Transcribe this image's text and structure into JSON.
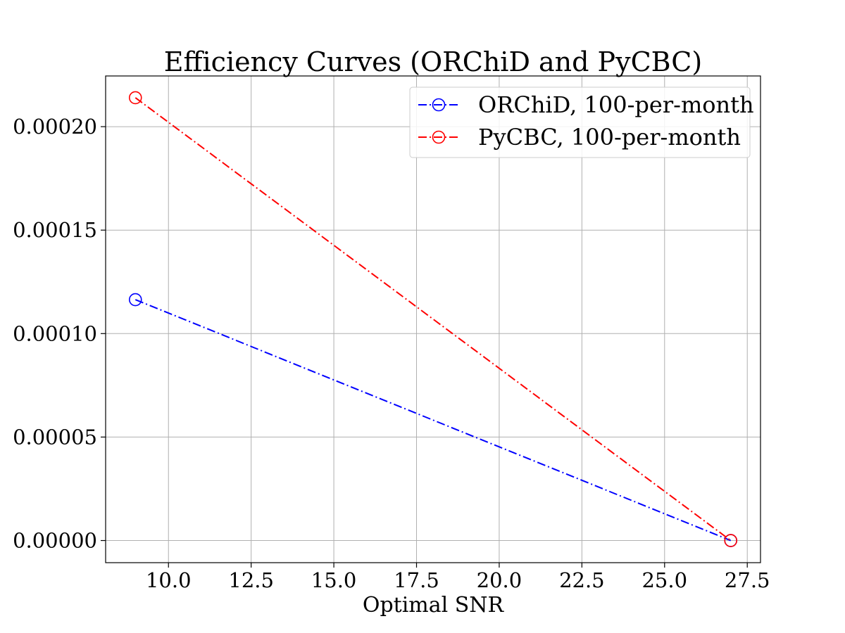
{
  "chart_data": {
    "type": "line",
    "title": "Efficiency Curves (ORChiD and PyCBC)",
    "xlabel": "Optimal SNR",
    "ylabel": "",
    "xlim": [
      8.1,
      27.9
    ],
    "ylim": [
      -1.07e-05,
      0.0002245
    ],
    "x_ticks": [
      10.0,
      12.5,
      15.0,
      17.5,
      20.0,
      22.5,
      25.0,
      27.5
    ],
    "x_tick_labels": [
      "10.0",
      "12.5",
      "15.0",
      "17.5",
      "20.0",
      "22.5",
      "25.0",
      "27.5"
    ],
    "y_ticks": [
      0.0,
      5e-05,
      0.0001,
      0.00015,
      0.0002
    ],
    "y_tick_labels": [
      "0.00000",
      "0.00005",
      "0.00010",
      "0.00015",
      "0.00020"
    ],
    "grid": true,
    "legend_position": "top-right",
    "series": [
      {
        "name": "ORChiD, 100-per-month",
        "color": "#0000ff",
        "marker": "open-circle",
        "line_style": "dash-dot",
        "x": [
          9,
          27
        ],
        "y": [
          0.0001164,
          0.0
        ]
      },
      {
        "name": "PyCBC, 100-per-month",
        "color": "#ff0000",
        "marker": "open-circle",
        "line_style": "dash-dot",
        "x": [
          9,
          27
        ],
        "y": [
          0.000214,
          0.0
        ]
      }
    ]
  }
}
